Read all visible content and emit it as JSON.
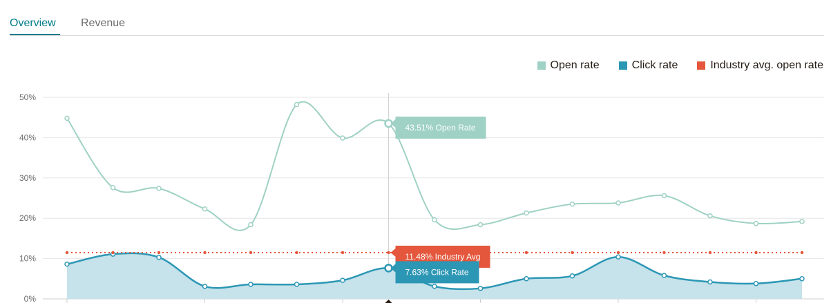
{
  "tabs": [
    {
      "label": "Overview",
      "active": true
    },
    {
      "label": "Revenue",
      "active": false
    }
  ],
  "legend": [
    {
      "label": "Open rate",
      "color": "#9fd1c4"
    },
    {
      "label": "Click rate",
      "color": "#2c97b5"
    },
    {
      "label": "Industry avg. open rate",
      "color": "#e4573c"
    }
  ],
  "chart_data": {
    "type": "line",
    "ylim": [
      0,
      50
    ],
    "y_tick_labels": [
      "50%",
      "40%",
      "30%",
      "20%",
      "10%",
      "0%"
    ],
    "y_ticks": [
      50,
      40,
      30,
      20,
      10,
      0
    ],
    "grid": true,
    "legend_position": "top-right",
    "highlight_index": 7,
    "series": [
      {
        "name": "Open rate",
        "color": "#9fd1c4",
        "values": [
          44.8,
          27.6,
          27.4,
          22.3,
          18.4,
          48.2,
          39.9,
          43.51,
          19.6,
          18.4,
          21.3,
          23.5,
          23.8,
          25.6,
          20.6,
          18.7,
          19.2
        ]
      },
      {
        "name": "Click rate",
        "color": "#2c97b5",
        "area": true,
        "values": [
          8.6,
          11.1,
          10.3,
          3.1,
          3.6,
          3.6,
          4.6,
          7.63,
          3.1,
          2.6,
          5.0,
          5.7,
          10.4,
          5.8,
          4.2,
          3.8,
          5.0
        ]
      },
      {
        "name": "Industry avg. open rate",
        "color": "#e4573c",
        "dashed": true,
        "values": [
          11.48,
          11.48,
          11.48,
          11.48,
          11.48,
          11.48,
          11.48,
          11.48,
          11.48,
          11.48,
          11.48,
          11.48,
          11.48,
          11.48,
          11.48,
          11.48,
          11.48
        ]
      }
    ],
    "tooltips": [
      {
        "text": "43.51% Open Rate",
        "color": "#9fd1c4"
      },
      {
        "text": "11.48% Industry Avg",
        "color": "#e4573c"
      },
      {
        "text": "7.63% Click Rate",
        "color": "#2c97b5"
      }
    ]
  }
}
